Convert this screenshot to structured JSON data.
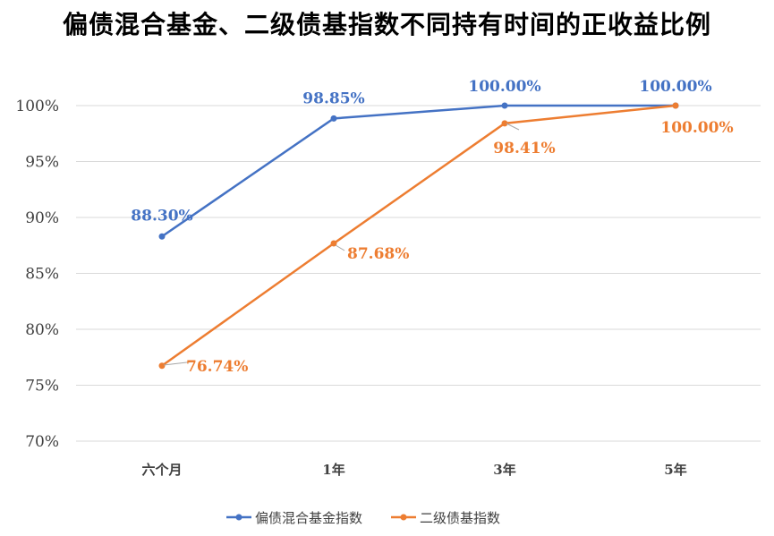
{
  "chart_data": {
    "type": "line",
    "title": "偏债混合基金、二级债基指数不同持有时间的正收益比例",
    "categories": [
      "六个月",
      "1年",
      "3年",
      "5年"
    ],
    "ylim": [
      70,
      100
    ],
    "yticks": [
      70,
      75,
      80,
      85,
      90,
      95,
      100
    ],
    "ytick_labels": [
      "70%",
      "75%",
      "80%",
      "85%",
      "90%",
      "95%",
      "100%"
    ],
    "grid": true,
    "legend_position": "bottom",
    "series": [
      {
        "name": "偏债混合基金指数",
        "color": "#4472C4",
        "values": [
          88.3,
          98.85,
          100.0,
          100.0
        ],
        "labels": [
          "88.30%",
          "98.85%",
          "100.00%",
          "100.00%"
        ]
      },
      {
        "name": "二级债基指数",
        "color": "#ED7D31",
        "values": [
          76.74,
          87.68,
          98.41,
          100.0
        ],
        "labels": [
          "76.74%",
          "87.68%",
          "98.41%",
          "100.00%"
        ]
      }
    ]
  }
}
